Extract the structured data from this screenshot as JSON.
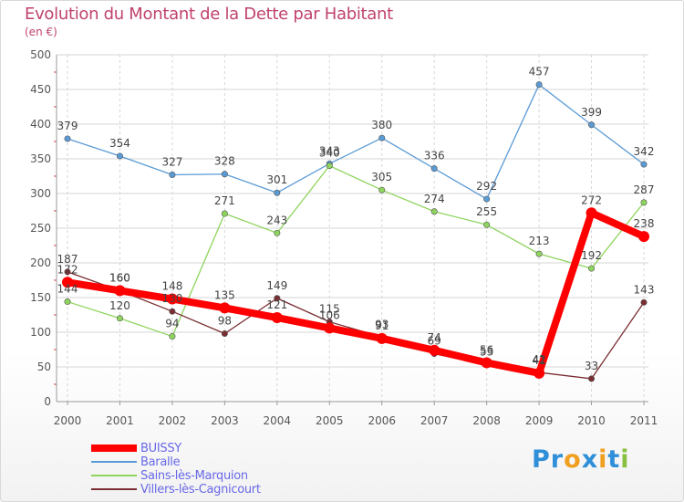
{
  "title": "Evolution du Montant de la Dette par Habitant",
  "unit": "(en €)",
  "logo": {
    "text": "Proxiti",
    "letters": [
      {
        "ch": "P",
        "color": "#2f8fd8"
      },
      {
        "ch": "r",
        "color": "#2f8fd8"
      },
      {
        "ch": "o",
        "color": "#f0a020"
      },
      {
        "ch": "x",
        "color": "#2f8fd8"
      },
      {
        "ch": "i",
        "color": "#f0a020"
      },
      {
        "ch": "t",
        "color": "#2f8fd8"
      },
      {
        "ch": "i",
        "color": "#88c040"
      }
    ]
  },
  "chart_data": {
    "type": "line",
    "title": "Evolution du Montant de la Dette par Habitant",
    "ylabel": "(en €)",
    "x": [
      "2000",
      "2001",
      "2002",
      "2003",
      "2004",
      "2005",
      "2006",
      "2007",
      "2008",
      "2009",
      "2010",
      "2011"
    ],
    "ylim": [
      0,
      500
    ],
    "yticks": [
      0,
      50,
      100,
      150,
      200,
      250,
      300,
      350,
      400,
      450,
      500
    ],
    "grid": true,
    "legend_position": "bottom-left",
    "series": [
      {
        "name": "Baralle",
        "color": "#5b9bd5",
        "values": [
          379,
          354,
          327,
          328,
          301,
          343,
          380,
          336,
          292,
          457,
          399,
          342
        ]
      },
      {
        "name": "Sains-lès-Marquion",
        "color": "#8fd45e",
        "values": [
          144,
          120,
          94,
          271,
          243,
          340,
          305,
          274,
          255,
          213,
          192,
          287
        ]
      },
      {
        "name": "Villers-lès-Cagnicourt",
        "color": "#7a2e33",
        "values": [
          187,
          160,
          130,
          98,
          149,
          115,
          93,
          69,
          53,
          42,
          33,
          143
        ]
      },
      {
        "name": "BUISSY",
        "color": "#ff0000",
        "values": [
          172,
          160,
          148,
          135,
          121,
          106,
          91,
          74,
          56,
          41,
          272,
          238
        ]
      }
    ]
  }
}
